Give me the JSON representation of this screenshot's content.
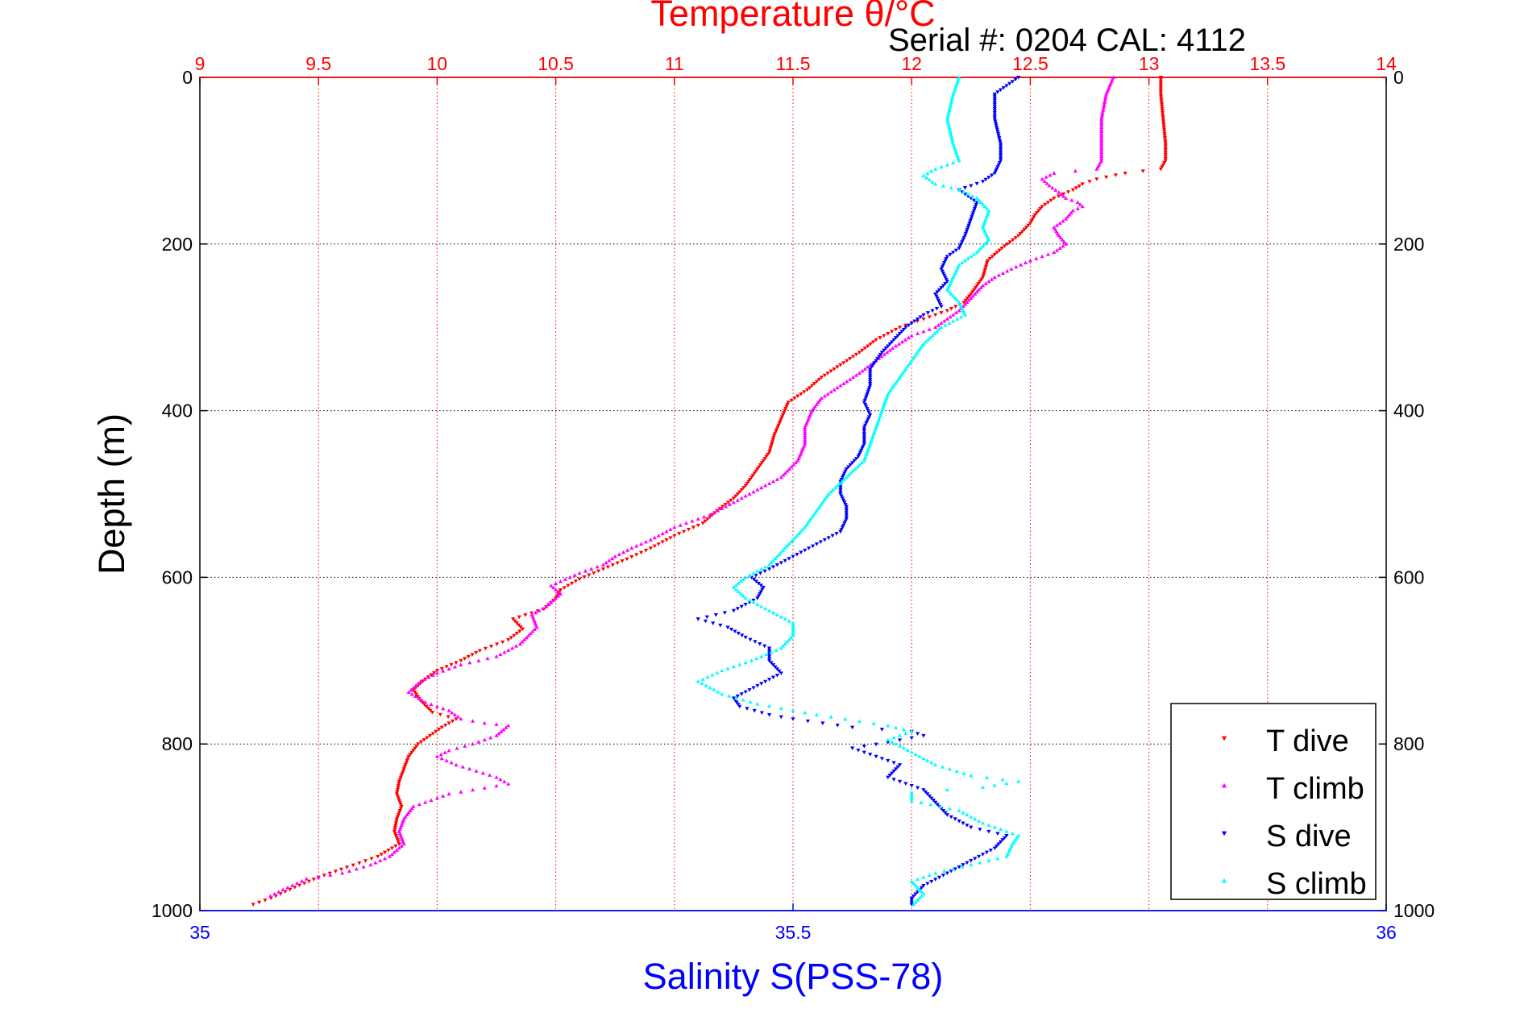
{
  "chart_data": {
    "type": "scatter",
    "title": "Temperature θ/°C",
    "subtitle": "Serial #: 0204  CAL: 4112",
    "xlabel_top": "Temperature θ/°C",
    "xlabel_bottom": "Salinity S(PSS-78)",
    "ylabel": "Depth (m)",
    "temperature_axis": {
      "range": [
        9,
        14
      ],
      "ticks": [
        9,
        9.5,
        10,
        10.5,
        11,
        11.5,
        12,
        12.5,
        13,
        13.5,
        14
      ],
      "tick_labels": [
        "9",
        "9.5",
        "10",
        "10.5",
        "11",
        "11.5",
        "12",
        "12.5",
        "13",
        "13.5",
        "14"
      ]
    },
    "salinity_axis": {
      "range": [
        35,
        36
      ],
      "ticks": [
        35,
        35.5,
        36
      ],
      "tick_labels": [
        "35",
        "35.5",
        "36"
      ]
    },
    "depth_axis": {
      "range": [
        0,
        1000
      ],
      "inverted": true,
      "ticks": [
        0,
        200,
        400,
        600,
        800,
        1000
      ],
      "tick_labels": [
        "0",
        "200",
        "400",
        "600",
        "800",
        "1000"
      ]
    },
    "grid": true,
    "legend_position": "bottom-right",
    "series": [
      {
        "name": "T dive",
        "axis": "temperature",
        "color": "#ff0000",
        "marker": "triangle-down",
        "points": [
          [
            13.05,
            0
          ],
          [
            13.05,
            20
          ],
          [
            13.06,
            50
          ],
          [
            13.07,
            80
          ],
          [
            13.07,
            100
          ],
          [
            13.05,
            110
          ],
          [
            12.9,
            115
          ],
          [
            12.78,
            122
          ],
          [
            12.72,
            128
          ],
          [
            12.68,
            135
          ],
          [
            12.6,
            145
          ],
          [
            12.55,
            155
          ],
          [
            12.52,
            165
          ],
          [
            12.5,
            175
          ],
          [
            12.45,
            190
          ],
          [
            12.38,
            205
          ],
          [
            12.32,
            220
          ],
          [
            12.3,
            240
          ],
          [
            12.25,
            260
          ],
          [
            12.22,
            270
          ],
          [
            12.15,
            280
          ],
          [
            12.05,
            290
          ],
          [
            11.95,
            300
          ],
          [
            11.85,
            315
          ],
          [
            11.78,
            330
          ],
          [
            11.7,
            345
          ],
          [
            11.62,
            360
          ],
          [
            11.56,
            375
          ],
          [
            11.48,
            390
          ],
          [
            11.45,
            410
          ],
          [
            11.42,
            430
          ],
          [
            11.4,
            450
          ],
          [
            11.35,
            470
          ],
          [
            11.3,
            490
          ],
          [
            11.25,
            505
          ],
          [
            11.18,
            520
          ],
          [
            11.12,
            535
          ],
          [
            11.0,
            550
          ],
          [
            10.9,
            565
          ],
          [
            10.8,
            578
          ],
          [
            10.7,
            590
          ],
          [
            10.6,
            602
          ],
          [
            10.52,
            615
          ],
          [
            10.5,
            625
          ],
          [
            10.45,
            638
          ],
          [
            10.32,
            650
          ],
          [
            10.36,
            662
          ],
          [
            10.3,
            675
          ],
          [
            10.18,
            688
          ],
          [
            10.1,
            700
          ],
          [
            10.0,
            712
          ],
          [
            9.95,
            722
          ],
          [
            9.9,
            735
          ],
          [
            9.93,
            748
          ],
          [
            9.98,
            762
          ],
          [
            10.08,
            770
          ],
          [
            10.02,
            780
          ],
          [
            9.97,
            790
          ],
          [
            9.92,
            800
          ],
          [
            9.88,
            815
          ],
          [
            9.86,
            830
          ],
          [
            9.84,
            845
          ],
          [
            9.83,
            860
          ],
          [
            9.85,
            875
          ],
          [
            9.83,
            890
          ],
          [
            9.82,
            905
          ],
          [
            9.84,
            920
          ],
          [
            9.75,
            935
          ],
          [
            9.62,
            948
          ],
          [
            9.5,
            960
          ],
          [
            9.4,
            972
          ],
          [
            9.3,
            985
          ],
          [
            9.2,
            995
          ]
        ]
      },
      {
        "name": "T climb",
        "axis": "temperature",
        "color": "#ff00ff",
        "marker": "triangle-up",
        "points": [
          [
            12.85,
            0
          ],
          [
            12.82,
            20
          ],
          [
            12.8,
            50
          ],
          [
            12.8,
            80
          ],
          [
            12.8,
            100
          ],
          [
            12.78,
            110
          ],
          [
            12.6,
            115
          ],
          [
            12.55,
            122
          ],
          [
            12.58,
            130
          ],
          [
            12.62,
            138
          ],
          [
            12.65,
            145
          ],
          [
            12.7,
            150
          ],
          [
            12.72,
            155
          ],
          [
            12.68,
            160
          ],
          [
            12.65,
            170
          ],
          [
            12.6,
            180
          ],
          [
            12.62,
            190
          ],
          [
            12.65,
            200
          ],
          [
            12.6,
            210
          ],
          [
            12.5,
            220
          ],
          [
            12.42,
            230
          ],
          [
            12.35,
            240
          ],
          [
            12.3,
            250
          ],
          [
            12.25,
            265
          ],
          [
            12.2,
            280
          ],
          [
            12.1,
            300
          ],
          [
            12.0,
            310
          ],
          [
            11.92,
            325
          ],
          [
            11.85,
            340
          ],
          [
            11.78,
            355
          ],
          [
            11.7,
            370
          ],
          [
            11.62,
            385
          ],
          [
            11.58,
            400
          ],
          [
            11.55,
            420
          ],
          [
            11.55,
            440
          ],
          [
            11.52,
            460
          ],
          [
            11.45,
            480
          ],
          [
            11.35,
            495
          ],
          [
            11.25,
            510
          ],
          [
            11.15,
            525
          ],
          [
            11.0,
            540
          ],
          [
            10.9,
            555
          ],
          [
            10.82,
            565
          ],
          [
            10.75,
            575
          ],
          [
            10.7,
            585
          ],
          [
            10.6,
            595
          ],
          [
            10.48,
            610
          ],
          [
            10.52,
            620
          ],
          [
            10.46,
            635
          ],
          [
            10.4,
            645
          ],
          [
            10.42,
            660
          ],
          [
            10.35,
            680
          ],
          [
            10.25,
            695
          ],
          [
            10.1,
            705
          ],
          [
            10.0,
            715
          ],
          [
            9.93,
            725
          ],
          [
            9.88,
            738
          ],
          [
            9.95,
            750
          ],
          [
            10.05,
            760
          ],
          [
            10.1,
            770
          ],
          [
            10.2,
            775
          ],
          [
            10.3,
            778
          ],
          [
            10.25,
            790
          ],
          [
            10.15,
            800
          ],
          [
            10.05,
            808
          ],
          [
            10.0,
            815
          ],
          [
            10.08,
            825
          ],
          [
            10.25,
            840
          ],
          [
            10.3,
            848
          ],
          [
            10.05,
            860
          ],
          [
            9.9,
            875
          ],
          [
            9.86,
            890
          ],
          [
            9.84,
            905
          ],
          [
            9.86,
            920
          ],
          [
            9.8,
            935
          ],
          [
            9.72,
            945
          ],
          [
            9.6,
            955
          ],
          [
            9.45,
            962
          ],
          [
            9.35,
            975
          ],
          [
            9.28,
            985
          ]
        ]
      },
      {
        "name": "S dive",
        "axis": "salinity",
        "color": "#0000ff",
        "marker": "triangle-down",
        "points": [
          [
            35.69,
            0
          ],
          [
            35.67,
            20
          ],
          [
            35.67,
            50
          ],
          [
            35.675,
            80
          ],
          [
            35.675,
            100
          ],
          [
            35.67,
            115
          ],
          [
            35.66,
            125
          ],
          [
            35.64,
            135
          ],
          [
            35.655,
            150
          ],
          [
            35.65,
            170
          ],
          [
            35.645,
            190
          ],
          [
            35.64,
            205
          ],
          [
            35.63,
            215
          ],
          [
            35.625,
            230
          ],
          [
            35.63,
            245
          ],
          [
            35.62,
            260
          ],
          [
            35.625,
            275
          ],
          [
            35.61,
            285
          ],
          [
            35.595,
            300
          ],
          [
            35.585,
            315
          ],
          [
            35.575,
            330
          ],
          [
            35.565,
            350
          ],
          [
            35.565,
            370
          ],
          [
            35.56,
            390
          ],
          [
            35.565,
            405
          ],
          [
            35.56,
            420
          ],
          [
            35.56,
            440
          ],
          [
            35.555,
            455
          ],
          [
            35.545,
            470
          ],
          [
            35.54,
            485
          ],
          [
            35.54,
            500
          ],
          [
            35.545,
            515
          ],
          [
            35.545,
            530
          ],
          [
            35.54,
            545
          ],
          [
            35.52,
            560
          ],
          [
            35.5,
            575
          ],
          [
            35.48,
            590
          ],
          [
            35.465,
            600
          ],
          [
            35.475,
            612
          ],
          [
            35.47,
            625
          ],
          [
            35.45,
            640
          ],
          [
            35.42,
            650
          ],
          [
            35.445,
            660
          ],
          [
            35.46,
            672
          ],
          [
            35.48,
            685
          ],
          [
            35.48,
            700
          ],
          [
            35.49,
            715
          ],
          [
            35.47,
            730
          ],
          [
            35.45,
            745
          ],
          [
            35.455,
            755
          ],
          [
            35.48,
            765
          ],
          [
            35.5,
            770
          ],
          [
            35.55,
            780
          ],
          [
            35.6,
            785
          ],
          [
            35.61,
            790
          ],
          [
            35.58,
            798
          ],
          [
            35.55,
            805
          ],
          [
            35.57,
            815
          ],
          [
            35.59,
            825
          ],
          [
            35.58,
            840
          ],
          [
            35.61,
            855
          ],
          [
            35.62,
            870
          ],
          [
            35.63,
            885
          ],
          [
            35.65,
            900
          ],
          [
            35.68,
            910
          ],
          [
            35.67,
            925
          ],
          [
            35.65,
            940
          ],
          [
            35.63,
            955
          ],
          [
            35.61,
            970
          ],
          [
            35.6,
            985
          ],
          [
            35.6,
            995
          ]
        ]
      },
      {
        "name": "S climb",
        "axis": "salinity",
        "color": "#00ffff",
        "marker": "triangle-up",
        "points": [
          [
            35.64,
            0
          ],
          [
            35.635,
            20
          ],
          [
            35.63,
            50
          ],
          [
            35.635,
            80
          ],
          [
            35.64,
            100
          ],
          [
            35.62,
            110
          ],
          [
            35.61,
            118
          ],
          [
            35.62,
            128
          ],
          [
            35.64,
            135
          ],
          [
            35.655,
            145
          ],
          [
            35.665,
            160
          ],
          [
            35.66,
            180
          ],
          [
            35.665,
            195
          ],
          [
            35.655,
            210
          ],
          [
            35.64,
            225
          ],
          [
            35.635,
            240
          ],
          [
            35.63,
            255
          ],
          [
            35.64,
            270
          ],
          [
            35.645,
            285
          ],
          [
            35.625,
            300
          ],
          [
            35.61,
            320
          ],
          [
            35.6,
            340
          ],
          [
            35.59,
            360
          ],
          [
            35.58,
            380
          ],
          [
            35.575,
            400
          ],
          [
            35.57,
            420
          ],
          [
            35.565,
            440
          ],
          [
            35.56,
            460
          ],
          [
            35.545,
            480
          ],
          [
            35.53,
            500
          ],
          [
            35.52,
            520
          ],
          [
            35.51,
            540
          ],
          [
            35.5,
            555
          ],
          [
            35.49,
            570
          ],
          [
            35.48,
            585
          ],
          [
            35.46,
            600
          ],
          [
            35.45,
            612
          ],
          [
            35.46,
            625
          ],
          [
            35.48,
            640
          ],
          [
            35.5,
            655
          ],
          [
            35.5,
            670
          ],
          [
            35.49,
            685
          ],
          [
            35.465,
            700
          ],
          [
            35.44,
            712
          ],
          [
            35.42,
            725
          ],
          [
            35.44,
            740
          ],
          [
            35.47,
            752
          ],
          [
            35.52,
            765
          ],
          [
            35.58,
            778
          ],
          [
            35.6,
            785
          ],
          [
            35.58,
            795
          ],
          [
            35.6,
            810
          ],
          [
            35.62,
            825
          ],
          [
            35.65,
            838
          ],
          [
            35.69,
            845
          ],
          [
            35.66,
            852
          ],
          [
            35.6,
            858
          ],
          [
            35.6,
            868
          ],
          [
            35.64,
            880
          ],
          [
            35.66,
            895
          ],
          [
            35.69,
            910
          ],
          [
            35.685,
            920
          ],
          [
            35.68,
            935
          ],
          [
            35.65,
            945
          ],
          [
            35.62,
            955
          ],
          [
            35.6,
            965
          ],
          [
            35.61,
            980
          ],
          [
            35.6,
            995
          ]
        ]
      }
    ]
  }
}
